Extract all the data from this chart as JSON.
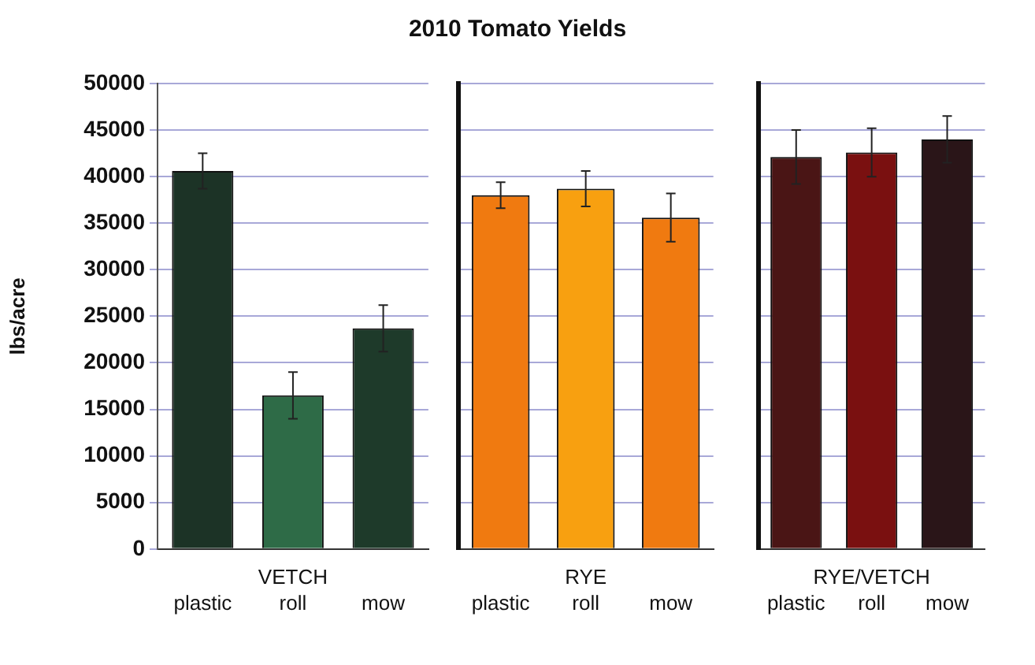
{
  "chart_data": [
    {
      "type": "bar",
      "ylabel": "lbs/acre",
      "xlabel": "VETCH",
      "categories": [
        "plastic",
        "roll",
        "mow"
      ],
      "values": [
        40600,
        16500,
        23700
      ],
      "errors": [
        1900,
        2500,
        2500
      ],
      "colors": [
        "#1c3326",
        "#2e6b47",
        "#1e3a2a"
      ],
      "ylim": [
        0,
        50000
      ],
      "yticks": [
        0,
        5000,
        10000,
        15000,
        20000,
        25000,
        30000,
        35000,
        40000,
        45000,
        50000
      ],
      "grid": "y",
      "legend": false
    },
    {
      "type": "bar",
      "title": "2010 Tomato Yields",
      "xlabel": "RYE",
      "categories": [
        "plastic",
        "roll",
        "mow"
      ],
      "values": [
        38000,
        38700,
        35600
      ],
      "errors": [
        1400,
        1900,
        2600
      ],
      "colors": [
        "#f07a10",
        "#f8a010",
        "#f07a10"
      ],
      "ylim": [
        0,
        50000
      ],
      "yticks": [
        0,
        5000,
        10000,
        15000,
        20000,
        25000,
        30000,
        35000,
        40000,
        45000,
        50000
      ],
      "tick_labels": "x",
      "grid": "y",
      "legend": false
    },
    {
      "type": "bar",
      "xlabel": "RYE/VETCH",
      "categories": [
        "plastic",
        "roll",
        "mow"
      ],
      "values": [
        42100,
        42600,
        44000
      ],
      "errors": [
        2900,
        2600,
        2500
      ],
      "colors": [
        "#4a1515",
        "#7a1010",
        "#2a1518"
      ],
      "ylim": [
        0,
        50000
      ],
      "yticks": [
        0,
        5000,
        10000,
        15000,
        20000,
        25000,
        30000,
        35000,
        40000,
        45000,
        50000
      ],
      "tick_labels": "x",
      "grid": "y",
      "legend": false
    }
  ]
}
